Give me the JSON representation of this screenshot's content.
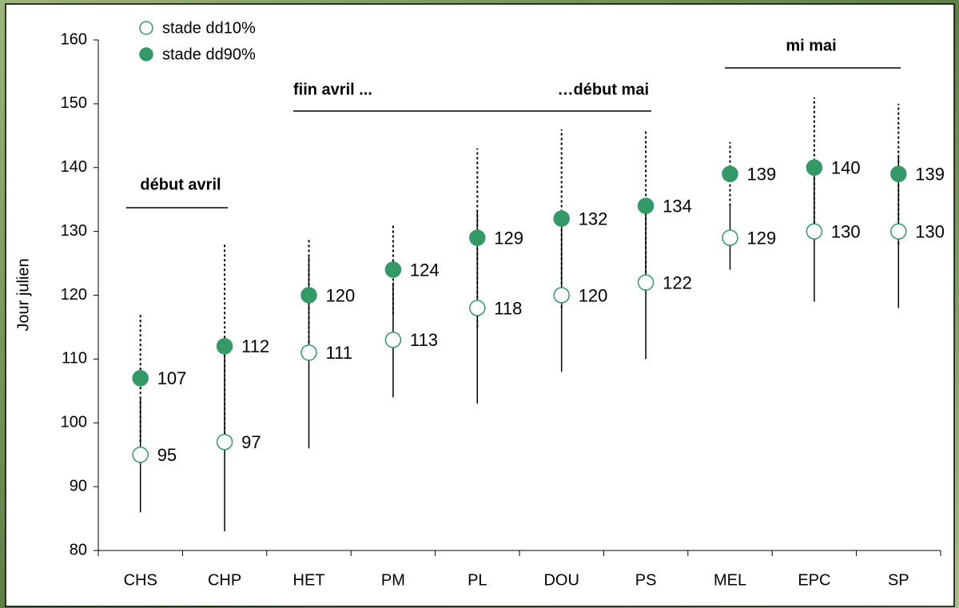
{
  "chart_data": {
    "type": "errorbar-scatter",
    "y_label": "Jour julien",
    "categories": [
      "CHS",
      "CHP",
      "HET",
      "PM",
      "PL",
      "DOU",
      "PS",
      "MEL",
      "EPC",
      "SP"
    ],
    "series": [
      {
        "name": "stade dd10%",
        "color": "#339966",
        "filled": false,
        "error_style": "solid",
        "values": [
          95,
          97,
          111,
          113,
          118,
          120,
          122,
          129,
          130,
          130
        ],
        "errors": [
          9,
          14,
          15,
          9,
          15,
          12,
          12,
          5,
          11,
          12
        ]
      },
      {
        "name": "stade dd90%",
        "color": "#339966",
        "filled": true,
        "error_style": "dotted",
        "values": [
          107,
          112,
          120,
          124,
          129,
          132,
          134,
          139,
          140,
          139
        ],
        "errors": [
          10,
          16,
          9,
          7,
          14,
          14,
          12,
          5,
          11,
          11
        ]
      }
    ],
    "ylim": [
      80,
      160
    ],
    "yticks": [
      80,
      90,
      100,
      110,
      120,
      130,
      140,
      150,
      160
    ],
    "legend": "top-left",
    "annotations": [
      "début avril",
      "fiin avril ...",
      "…début mai",
      "mi mai"
    ]
  }
}
